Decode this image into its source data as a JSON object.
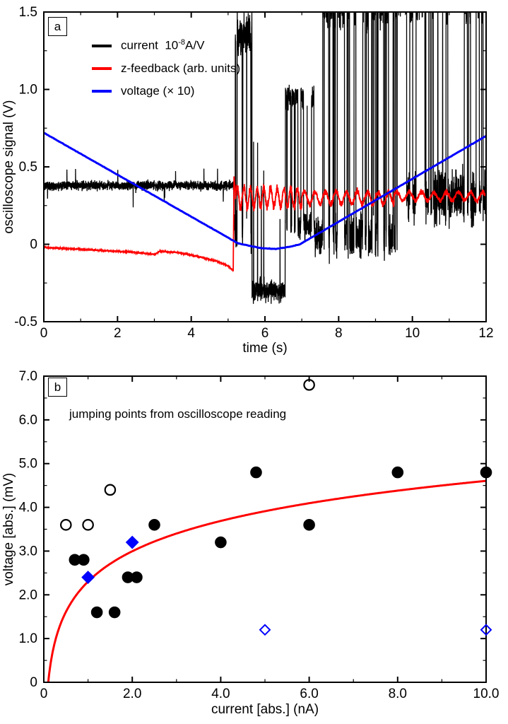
{
  "figure": {
    "background": "#ffffff",
    "panel_a": {
      "label": "a",
      "legend": {
        "current": {
          "base": "current  10",
          "sup": "-8",
          "unit": "A/V",
          "color": "#000000"
        },
        "z_feedback": {
          "label": "z-feedback (arb. units)",
          "color": "#ff0000"
        },
        "voltage": {
          "label": "voltage (× 10)",
          "color": "#0000ff"
        }
      }
    },
    "panel_b": {
      "label": "b",
      "annotation": "jumping points from oscilloscope reading"
    }
  },
  "chart_data": [
    {
      "id": "a",
      "type": "line",
      "title": "",
      "xlabel": "time (s)",
      "ylabel": "oscilloscope signal (V)",
      "xlim": [
        0,
        12
      ],
      "ylim": [
        -0.5,
        1.5
      ],
      "xticks_major": [
        0,
        2,
        4,
        6,
        8,
        10,
        12
      ],
      "xtick_labels": [
        "0",
        "2",
        "4",
        "6",
        "8",
        "10",
        "12"
      ],
      "xticks_minor_step": 1,
      "yticks_major": [
        -0.5,
        0,
        0.5,
        1.0,
        1.5
      ],
      "ytick_labels": [
        "-0.5",
        "0",
        "0.5",
        "1.0",
        "1.5"
      ],
      "yticks_minor_step": 0.25,
      "grid": false,
      "legend_position": "upper-left",
      "series": [
        {
          "id": "current",
          "name": "current 10^-8 A/V",
          "color": "#000000",
          "width": 1.3,
          "description": "noisy baseline near 0.4 V for t < 5.2 s; after 5.2 s large random telegraph-like jumps spanning -0.45 V to above 1.5 V (clipped at frame top), with a low plateau near -0.3 V between 5.7 and 6.5 s",
          "synthesis": {
            "seed": 11,
            "dt": 0.003,
            "segments": [
              {
                "mode": "noise",
                "t": [
                  0,
                  5.15
                ],
                "base": 0.38,
                "amp": 0.022,
                "spike_prob": 0.004,
                "spike_amp": 0.14,
                "spike_dir": 0
              },
              {
                "mode": "telegraph",
                "t": [
                  5.15,
                  5.65
                ],
                "lo": 0.1,
                "hi": 1.35,
                "rate": 25,
                "njit": 0.1
              },
              {
                "mode": "noise",
                "t": [
                  5.65,
                  6.55
                ],
                "base": -0.3,
                "amp": 0.055,
                "spike_prob": 0.02,
                "spike_amp": 1.1,
                "spike_dir": 1
              },
              {
                "mode": "telegraph",
                "t": [
                  6.55,
                  7.35
                ],
                "lo": 0.12,
                "hi": 0.95,
                "rate": 20,
                "njit": 0.06
              },
              {
                "mode": "telegraph",
                "t": [
                  7.35,
                  9.6
                ],
                "lo": 0.05,
                "hi": 1.55,
                "rate": 15,
                "njit": 0.1
              },
              {
                "mode": "telegraph",
                "t": [
                  9.6,
                  12
                ],
                "lo": 0.3,
                "hi": 1.6,
                "rate": 12,
                "njit": 0.12
              }
            ]
          }
        },
        {
          "id": "z_feedback",
          "name": "z-feedback (arb. units)",
          "color": "#ff0000",
          "width": 1.8,
          "description": "drifts slowly from -0.02 down to -0.17 by 5.1 s, jumps to about 0.44 at 5.2 s, then oscillates noisily around 0.30 until 12 s",
          "synthesis": {
            "seed": 23,
            "dt": 0.004,
            "segments": [
              {
                "mode": "keypoints",
                "t": [
                  0,
                  5.14
                ],
                "noise": 0.005,
                "points": [
                  [
                    0,
                    -0.02
                  ],
                  [
                    1.2,
                    -0.035
                  ],
                  [
                    2.4,
                    -0.05
                  ],
                  [
                    3.0,
                    -0.065
                  ],
                  [
                    3.15,
                    -0.045
                  ],
                  [
                    3.7,
                    -0.055
                  ],
                  [
                    4.2,
                    -0.08
                  ],
                  [
                    4.7,
                    -0.11
                  ],
                  [
                    5.0,
                    -0.14
                  ],
                  [
                    5.14,
                    -0.17
                  ]
                ]
              },
              {
                "mode": "keypoints",
                "t": [
                  5.14,
                  5.2
                ],
                "noise": 0.01,
                "points": [
                  [
                    5.14,
                    -0.17
                  ],
                  [
                    5.16,
                    0.44
                  ],
                  [
                    5.2,
                    0.33
                  ]
                ]
              },
              {
                "mode": "osc",
                "t": [
                  5.2,
                  7.0
                ],
                "base": 0.3,
                "amp": 0.075,
                "freq": 5.5,
                "njit": 0.018
              },
              {
                "mode": "osc",
                "t": [
                  7.0,
                  9.5
                ],
                "base": 0.3,
                "amp": 0.05,
                "freq": 3.5,
                "njit": 0.012
              },
              {
                "mode": "osc",
                "t": [
                  9.5,
                  12
                ],
                "base": 0.31,
                "amp": 0.035,
                "freq": 3,
                "njit": 0.01
              }
            ]
          }
        },
        {
          "id": "voltage",
          "name": "voltage (x 10)",
          "color": "#0000ff",
          "width": 3,
          "description": "linear ramp down from 0.72 V at t=0 to 0 at 5.3 s, flat slightly below zero until 6.9 s, then linear ramp up to 0.70 V at 12 s",
          "synthesis": {
            "seed": 5,
            "dt": 0.02,
            "segments": [
              {
                "mode": "keypoints",
                "t": [
                  0,
                  12
                ],
                "noise": 0.002,
                "points": [
                  [
                    0,
                    0.72
                  ],
                  [
                    5.28,
                    0.005
                  ],
                  [
                    5.55,
                    -0.008
                  ],
                  [
                    5.9,
                    -0.025
                  ],
                  [
                    6.3,
                    -0.03
                  ],
                  [
                    6.7,
                    -0.015
                  ],
                  [
                    6.95,
                    0.0
                  ],
                  [
                    12,
                    0.7
                  ]
                ]
              }
            ]
          }
        }
      ]
    },
    {
      "id": "b",
      "type": "scatter",
      "title": "",
      "xlabel": "current [abs.] (nA)",
      "ylabel": "voltage [abs.] (mV)",
      "xlim": [
        0,
        10
      ],
      "ylim": [
        0,
        7
      ],
      "xticks_major": [
        0,
        2,
        4,
        6,
        8,
        10
      ],
      "xtick_labels": [
        "0",
        "2.0",
        "4.0",
        "6.0",
        "8.0",
        "10.0"
      ],
      "xticks_minor_step": 1,
      "yticks_major": [
        0,
        1,
        2,
        3,
        4,
        5,
        6,
        7
      ],
      "ytick_labels": [
        "0",
        "1.0",
        "2.0",
        "3.0",
        "4.0",
        "5.0",
        "6.0",
        "7.0"
      ],
      "yticks_minor_step": 0.5,
      "grid": false,
      "annotation": "jumping points from oscilloscope reading",
      "series": [
        {
          "id": "filled_circles",
          "name": "jump points (filled circles)",
          "marker": "circle",
          "fill": "#000000",
          "stroke": "#000000",
          "size": 7.2,
          "points": [
            [
              0.7,
              2.8
            ],
            [
              0.9,
              2.8
            ],
            [
              1.2,
              1.6
            ],
            [
              1.6,
              1.6
            ],
            [
              1.9,
              2.4
            ],
            [
              2.1,
              2.4
            ],
            [
              2.5,
              3.6
            ],
            [
              4.0,
              3.2
            ],
            [
              4.8,
              4.8
            ],
            [
              6.0,
              3.6
            ],
            [
              8.0,
              4.8
            ],
            [
              10.0,
              4.8
            ]
          ]
        },
        {
          "id": "open_circles",
          "name": "jump points (open circles)",
          "marker": "circle",
          "fill": "none",
          "stroke": "#000000",
          "size": 7.2,
          "points": [
            [
              0.5,
              3.6
            ],
            [
              1.0,
              3.6
            ],
            [
              1.5,
              4.4
            ],
            [
              6.0,
              6.8
            ]
          ]
        },
        {
          "id": "filled_diamonds",
          "name": "jump points (filled diamonds)",
          "marker": "diamond",
          "fill": "#0000ff",
          "stroke": "#0000ff",
          "size": 8,
          "points": [
            [
              1.0,
              2.4
            ],
            [
              2.0,
              3.2
            ]
          ]
        },
        {
          "id": "open_diamonds",
          "name": "jump points (open diamonds)",
          "marker": "diamond",
          "fill": "none",
          "stroke": "#0000ff",
          "size": 7,
          "points": [
            [
              5.0,
              1.2
            ],
            [
              10.0,
              1.2
            ]
          ]
        }
      ],
      "fit": {
        "type": "log",
        "formula": "y = a*ln(x/x0)",
        "a": 1.0,
        "x0": 0.1,
        "color": "#ff0000",
        "width": 3,
        "x_range": [
          0.1,
          10
        ]
      }
    }
  ]
}
